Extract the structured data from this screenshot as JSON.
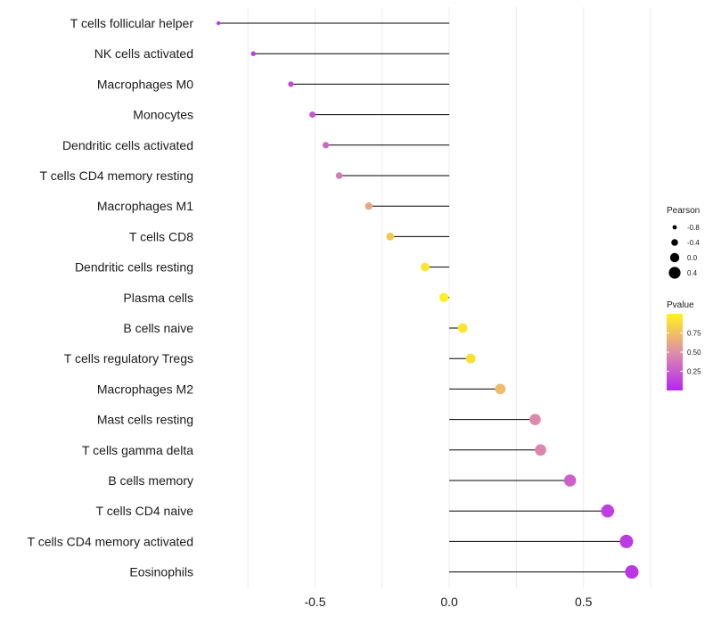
{
  "chart_data": {
    "type": "lollipop",
    "xlim": [
      -0.93,
      0.77
    ],
    "x_ticks": [
      -0.5,
      0.0,
      0.5
    ],
    "x_tick_labels": [
      "-0.5",
      "0.0",
      "0.5"
    ],
    "categories": [
      "T cells follicular helper",
      "NK cells activated",
      "Macrophages M0",
      "Monocytes",
      "Dendritic cells activated",
      "T cells CD4 memory resting",
      "Macrophages M1",
      "T cells CD8",
      "Dendritic cells resting",
      "Plasma cells",
      "B cells naive",
      "T cells regulatory  Tregs ",
      "Macrophages M2",
      "Mast cells resting",
      "T cells gamma delta",
      "B cells memory",
      "T cells CD4 naive",
      "T cells CD4 memory activated",
      "Eosinophils"
    ],
    "pearson": [
      -0.86,
      -0.73,
      -0.59,
      -0.51,
      -0.46,
      -0.41,
      -0.3,
      -0.22,
      -0.09,
      -0.02,
      0.05,
      0.08,
      0.19,
      0.32,
      0.34,
      0.45,
      0.59,
      0.66,
      0.68
    ],
    "pvalue": [
      0.08,
      0.1,
      0.18,
      0.22,
      0.3,
      0.4,
      0.62,
      0.78,
      0.93,
      0.98,
      0.93,
      0.9,
      0.72,
      0.48,
      0.45,
      0.28,
      0.12,
      0.1,
      0.08
    ],
    "legend_size": {
      "title": "Pearson",
      "values": [
        -0.8,
        -0.4,
        0.0,
        0.4
      ],
      "labels": [
        "-0.8",
        "-0.4",
        "0.0",
        "0.4"
      ]
    },
    "legend_color": {
      "title": "Pvalue",
      "ticks": [
        0.75,
        0.5,
        0.25
      ],
      "tick_labels": [
        "0.75",
        "0.50",
        "0.25"
      ],
      "low_color": "#b426f2",
      "mid_color": "#e08fa8",
      "high_color": "#fff41a"
    },
    "stem_color": "#000000",
    "grid": true
  }
}
